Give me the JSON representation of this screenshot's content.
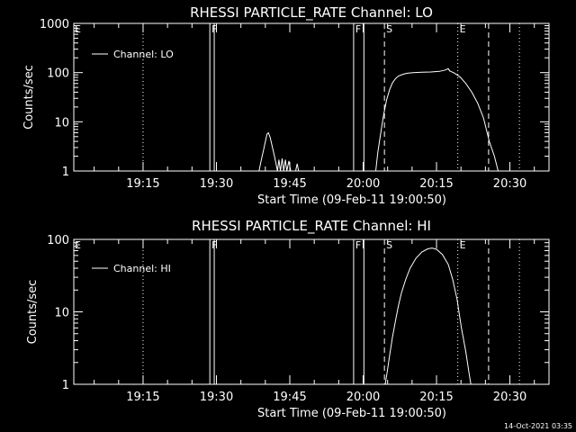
{
  "chart_data": [
    {
      "type": "line",
      "title": "RHESSI PARTICLE_RATE Channel: LO",
      "xlabel": "Start Time (09-Feb-11 19:00:50)",
      "ylabel": "Counts/sec",
      "ylog": true,
      "xlim": [
        19.0139,
        20.6333
      ],
      "ylim": [
        1,
        1000
      ],
      "xticks": [
        {
          "label": "19:15",
          "x": 19.25
        },
        {
          "label": "19:30",
          "x": 19.5
        },
        {
          "label": "19:45",
          "x": 19.75
        },
        {
          "label": "20:00",
          "x": 20.0
        },
        {
          "label": "20:15",
          "x": 20.25
        },
        {
          "label": "20:30",
          "x": 20.5
        }
      ],
      "yticks": [
        {
          "label": "1",
          "y": 1
        },
        {
          "label": "10",
          "y": 10
        },
        {
          "label": "100",
          "y": 100
        },
        {
          "label": "1000",
          "y": 1000
        }
      ],
      "legend": "top-left",
      "series": [
        {
          "name": "Channel: LO",
          "points": [
            [
              19.645,
              1
            ],
            [
              19.652,
              1.6
            ],
            [
              19.66,
              2.6
            ],
            [
              19.667,
              4
            ],
            [
              19.672,
              5.6
            ],
            [
              19.677,
              6
            ],
            [
              19.683,
              4.8
            ],
            [
              19.69,
              3.2
            ],
            [
              19.697,
              2.1
            ],
            [
              19.703,
              1.4
            ],
            [
              19.708,
              1
            ],
            [
              19.713,
              1.7
            ],
            [
              19.718,
              1
            ],
            [
              19.724,
              1.8
            ],
            [
              19.729,
              1
            ],
            [
              19.735,
              1.7
            ],
            [
              19.74,
              1
            ],
            [
              19.747,
              1.6
            ],
            [
              19.753,
              1
            ],
            [
              19.77,
              1
            ],
            [
              19.775,
              1.4
            ],
            [
              19.78,
              1
            ],
            [
              20.043,
              1
            ],
            [
              20.05,
              2.4
            ],
            [
              20.06,
              6
            ],
            [
              20.07,
              14
            ],
            [
              20.08,
              28
            ],
            [
              20.09,
              45
            ],
            [
              20.1,
              62
            ],
            [
              20.11,
              75
            ],
            [
              20.12,
              85
            ],
            [
              20.135,
              92
            ],
            [
              20.15,
              97
            ],
            [
              20.17,
              100
            ],
            [
              20.2,
              102
            ],
            [
              20.23,
              103
            ],
            [
              20.26,
              106
            ],
            [
              20.28,
              113
            ],
            [
              20.29,
              120
            ],
            [
              20.295,
              108
            ],
            [
              20.31,
              98
            ],
            [
              20.33,
              82
            ],
            [
              20.35,
              60
            ],
            [
              20.37,
              40
            ],
            [
              20.39,
              24
            ],
            [
              20.41,
              12
            ],
            [
              20.43,
              4
            ],
            [
              20.447,
              2
            ],
            [
              20.46,
              1
            ]
          ]
        }
      ],
      "markers": [
        {
          "x": 19.25,
          "style": "dotted",
          "label": ""
        },
        {
          "x": 19.4775,
          "style": "solid",
          "label": "F"
        },
        {
          "x": 19.4925,
          "style": "solid",
          "label": ""
        },
        {
          "x": 19.9675,
          "style": "solid",
          "label": "F"
        },
        {
          "x": 20.0025,
          "style": "solid",
          "label": ""
        },
        {
          "x": 20.0725,
          "style": "dashed",
          "label": "S"
        },
        {
          "x": 20.3225,
          "style": "dotted",
          "label": "E"
        },
        {
          "x": 20.4275,
          "style": "dashed",
          "label": ""
        },
        {
          "x": 20.5325,
          "style": "dotted",
          "label": ""
        }
      ],
      "corner_label": "E"
    },
    {
      "type": "line",
      "title": "RHESSI PARTICLE_RATE Channel: HI",
      "xlabel": "Start Time (09-Feb-11 19:00:50)",
      "ylabel": "Counts/sec",
      "ylog": true,
      "xlim": [
        19.0139,
        20.6333
      ],
      "ylim": [
        1,
        100
      ],
      "xticks": [
        {
          "label": "19:15",
          "x": 19.25
        },
        {
          "label": "19:30",
          "x": 19.5
        },
        {
          "label": "19:45",
          "x": 19.75
        },
        {
          "label": "20:00",
          "x": 20.0
        },
        {
          "label": "20:15",
          "x": 20.25
        },
        {
          "label": "20:30",
          "x": 20.5
        }
      ],
      "yticks": [
        {
          "label": "1",
          "y": 1
        },
        {
          "label": "10",
          "y": 10
        },
        {
          "label": "100",
          "y": 100
        }
      ],
      "legend": "top-left",
      "series": [
        {
          "name": "Channel: HI",
          "points": [
            [
              20.075,
              1
            ],
            [
              20.082,
              1.5
            ],
            [
              20.09,
              2.5
            ],
            [
              20.1,
              4.5
            ],
            [
              20.11,
              7.5
            ],
            [
              20.12,
              12
            ],
            [
              20.13,
              18
            ],
            [
              20.145,
              28
            ],
            [
              20.16,
              40
            ],
            [
              20.18,
              55
            ],
            [
              20.2,
              67
            ],
            [
              20.22,
              74
            ],
            [
              20.235,
              76
            ],
            [
              20.25,
              73
            ],
            [
              20.27,
              62
            ],
            [
              20.29,
              45
            ],
            [
              20.305,
              28
            ],
            [
              20.32,
              15
            ],
            [
              20.335,
              6
            ],
            [
              20.35,
              2.8
            ],
            [
              20.36,
              1.5
            ],
            [
              20.367,
              1
            ]
          ]
        }
      ],
      "markers": [
        {
          "x": 19.25,
          "style": "dotted",
          "label": ""
        },
        {
          "x": 19.4775,
          "style": "solid",
          "label": "F"
        },
        {
          "x": 19.4925,
          "style": "solid",
          "label": ""
        },
        {
          "x": 19.9675,
          "style": "solid",
          "label": "F"
        },
        {
          "x": 20.0025,
          "style": "solid",
          "label": ""
        },
        {
          "x": 20.0725,
          "style": "dashed",
          "label": "S"
        },
        {
          "x": 20.3225,
          "style": "dotted",
          "label": "E"
        },
        {
          "x": 20.4275,
          "style": "dashed",
          "label": ""
        },
        {
          "x": 20.5325,
          "style": "dotted",
          "label": ""
        }
      ],
      "corner_label": "E"
    }
  ],
  "footer": {
    "timestamp": "14-Oct-2021 03:35"
  }
}
